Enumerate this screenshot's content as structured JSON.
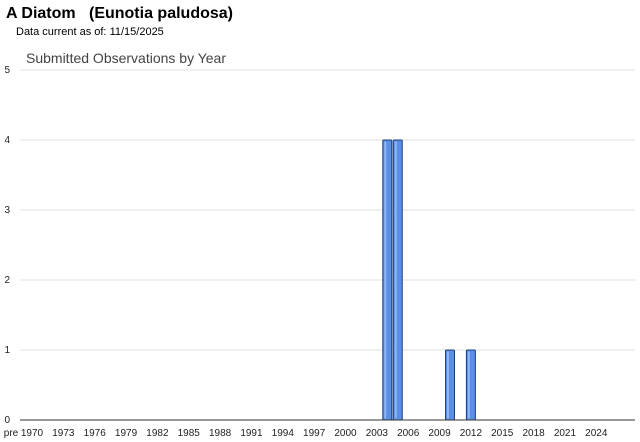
{
  "header": {
    "common_name": "A Diatom",
    "scientific_name": "(Eunotia paludosa)",
    "data_current_label": "Data current as of:",
    "data_current_date": "11/15/2025"
  },
  "colors": {
    "bar_fill": "#5b8fe6",
    "bar_stroke": "#1d3f7a",
    "bar_highlight": "#8fb5f2"
  },
  "chart_data": {
    "type": "bar",
    "title": "Submitted Observations by Year",
    "xlabel": "",
    "ylabel": "",
    "ylim": [
      0,
      5
    ],
    "yticks": [
      "0",
      "1",
      "2",
      "3",
      "4",
      "5"
    ],
    "grid": true,
    "legend": "none",
    "categories": [
      "pre",
      "1970",
      "1971",
      "1972",
      "1973",
      "1974",
      "1975",
      "1976",
      "1977",
      "1978",
      "1979",
      "1980",
      "1981",
      "1982",
      "1983",
      "1984",
      "1985",
      "1986",
      "1987",
      "1988",
      "1989",
      "1990",
      "1991",
      "1992",
      "1993",
      "1994",
      "1995",
      "1996",
      "1997",
      "1998",
      "1999",
      "2000",
      "2001",
      "2002",
      "2003",
      "2004",
      "2005",
      "2006",
      "2007",
      "2008",
      "2009",
      "2010",
      "2011",
      "2012",
      "2013",
      "2014",
      "2015",
      "2016",
      "2017",
      "2018",
      "2019",
      "2020",
      "2021",
      "2022",
      "2023",
      "2024",
      "2025"
    ],
    "xtick_labels": [
      "pre",
      "1970",
      "1973",
      "1976",
      "1979",
      "1982",
      "1985",
      "1988",
      "1991",
      "1994",
      "1997",
      "2000",
      "2003",
      "2006",
      "2009",
      "2012",
      "2015",
      "2018",
      "2021",
      "2024"
    ],
    "values": [
      0,
      0,
      0,
      0,
      0,
      0,
      0,
      0,
      0,
      0,
      0,
      0,
      0,
      0,
      0,
      0,
      0,
      0,
      0,
      0,
      0,
      0,
      0,
      0,
      0,
      0,
      0,
      0,
      0,
      0,
      0,
      0,
      0,
      0,
      0,
      4,
      4,
      0,
      0,
      0,
      0,
      1,
      0,
      1,
      0,
      0,
      0,
      0,
      0,
      0,
      0,
      0,
      0,
      0,
      0,
      0,
      0
    ]
  }
}
